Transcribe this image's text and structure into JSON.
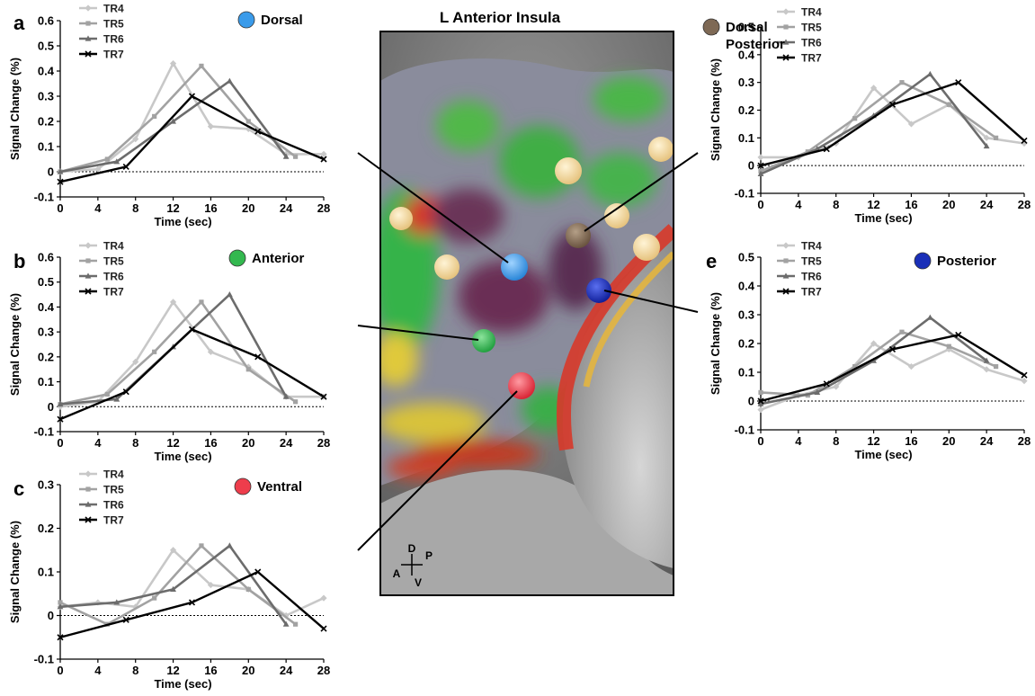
{
  "brain_panel": {
    "title": "L Anterior Insula",
    "orientation": {
      "dorsal": "D",
      "anterior": "A",
      "posterior": "P",
      "ventral": "V"
    }
  },
  "legend_labels": [
    "TR4",
    "TR5",
    "TR6",
    "TR7"
  ],
  "series_colors": [
    "#c8c8c8",
    "#a2a2a2",
    "#6c6c6c",
    "#000000"
  ],
  "region_colors": {
    "dorsal": "#3a9bea",
    "anterior": "#33b84f",
    "ventral": "#ee3d4c",
    "dorsal_posterior": "#7e6955",
    "posterior": "#1a2fb8"
  },
  "chart_data": [
    {
      "panel": "a",
      "region": "Dorsal",
      "type": "line",
      "xlabel": "Time (sec)",
      "ylabel": "Signal Change (%)",
      "xlim": [
        0,
        28
      ],
      "ylim": [
        -0.1,
        0.6
      ],
      "xticks": [
        0,
        4,
        8,
        12,
        16,
        20,
        24,
        28
      ],
      "yticks": [
        -0.1,
        0,
        0.1,
        0.2,
        0.3,
        0.4,
        0.5,
        0.6
      ],
      "ytick_labels": [
        "-0.1",
        "0",
        "0.1",
        "0.2",
        "0.3",
        "0.4",
        "0.5",
        "0.6"
      ],
      "series": [
        {
          "name": "TR4",
          "x": [
            0,
            4,
            8,
            12,
            16,
            20,
            24,
            28
          ],
          "values": [
            0.0,
            0.01,
            0.13,
            0.43,
            0.18,
            0.17,
            0.07,
            0.07
          ]
        },
        {
          "name": "TR5",
          "x": [
            0,
            5,
            10,
            15,
            20,
            25
          ],
          "values": [
            0.0,
            0.05,
            0.22,
            0.42,
            0.2,
            0.06
          ]
        },
        {
          "name": "TR6",
          "x": [
            0,
            6,
            12,
            18,
            24
          ],
          "values": [
            0.0,
            0.04,
            0.2,
            0.36,
            0.06
          ]
        },
        {
          "name": "TR7",
          "x": [
            0,
            7,
            14,
            21,
            28
          ],
          "values": [
            -0.04,
            0.02,
            0.3,
            0.16,
            0.05
          ]
        }
      ]
    },
    {
      "panel": "b",
      "region": "Anterior",
      "type": "line",
      "xlabel": "Time (sec)",
      "ylabel": "Signal Change (%)",
      "xlim": [
        0,
        28
      ],
      "ylim": [
        -0.1,
        0.6
      ],
      "xticks": [
        0,
        4,
        8,
        12,
        16,
        20,
        24,
        28
      ],
      "yticks": [
        -0.1,
        0,
        0.1,
        0.2,
        0.3,
        0.4,
        0.5,
        0.6
      ],
      "ytick_labels": [
        "-0.1",
        "0",
        "0.1",
        "0.2",
        "0.3",
        "0.4",
        "0.5",
        "0.6"
      ],
      "series": [
        {
          "name": "TR4",
          "x": [
            0,
            4,
            8,
            12,
            16,
            20,
            24,
            28
          ],
          "values": [
            0.0,
            0.02,
            0.18,
            0.42,
            0.22,
            0.16,
            0.04,
            0.04
          ]
        },
        {
          "name": "TR5",
          "x": [
            0,
            5,
            10,
            15,
            20,
            25
          ],
          "values": [
            0.01,
            0.05,
            0.22,
            0.42,
            0.15,
            0.02
          ]
        },
        {
          "name": "TR6",
          "x": [
            0,
            6,
            12,
            18,
            24
          ],
          "values": [
            0.01,
            0.03,
            0.24,
            0.45,
            0.04
          ]
        },
        {
          "name": "TR7",
          "x": [
            0,
            7,
            14,
            21,
            28
          ],
          "values": [
            -0.05,
            0.06,
            0.31,
            0.2,
            0.04
          ]
        }
      ]
    },
    {
      "panel": "c",
      "region": "Ventral",
      "type": "line",
      "xlabel": "Time (sec)",
      "ylabel": "Signal Change (%)",
      "xlim": [
        0,
        28
      ],
      "ylim": [
        -0.1,
        0.3
      ],
      "xticks": [
        0,
        4,
        8,
        12,
        16,
        20,
        24,
        28
      ],
      "yticks": [
        -0.1,
        0,
        0.1,
        0.2,
        0.3
      ],
      "ytick_labels": [
        "-0.1",
        "0",
        "0.1",
        "0.2",
        "0.3"
      ],
      "series": [
        {
          "name": "TR4",
          "x": [
            0,
            4,
            8,
            12,
            16,
            20,
            24,
            28
          ],
          "values": [
            0.02,
            0.03,
            0.02,
            0.15,
            0.07,
            0.06,
            0.0,
            0.04
          ]
        },
        {
          "name": "TR5",
          "x": [
            0,
            5,
            10,
            15,
            20,
            25
          ],
          "values": [
            0.03,
            -0.02,
            0.04,
            0.16,
            0.06,
            -0.02
          ]
        },
        {
          "name": "TR6",
          "x": [
            0,
            6,
            12,
            18,
            24
          ],
          "values": [
            0.02,
            0.03,
            0.06,
            0.16,
            -0.02
          ]
        },
        {
          "name": "TR7",
          "x": [
            0,
            7,
            14,
            21,
            28
          ],
          "values": [
            -0.05,
            -0.01,
            0.03,
            0.1,
            -0.03
          ]
        }
      ]
    },
    {
      "panel": "d",
      "region": "Dorsal Posterior",
      "type": "line",
      "xlabel": "Time (sec)",
      "ylabel": "Signal Change (%)",
      "xlim": [
        0,
        28
      ],
      "ylim": [
        -0.1,
        0.5
      ],
      "xticks": [
        0,
        4,
        8,
        12,
        16,
        20,
        24,
        28
      ],
      "yticks": [
        -0.1,
        0,
        0.1,
        0.2,
        0.3,
        0.4,
        0.5
      ],
      "ytick_labels": [
        "-0.1",
        "0",
        "0.1",
        "0.2",
        "0.3",
        "0.4",
        "0.5"
      ],
      "series": [
        {
          "name": "TR4",
          "x": [
            0,
            4,
            8,
            12,
            16,
            20,
            24,
            28
          ],
          "values": [
            0.03,
            0.03,
            0.08,
            0.28,
            0.15,
            0.22,
            0.1,
            0.08
          ]
        },
        {
          "name": "TR5",
          "x": [
            0,
            5,
            10,
            15,
            20,
            25
          ],
          "values": [
            -0.02,
            0.05,
            0.17,
            0.3,
            0.22,
            0.1
          ]
        },
        {
          "name": "TR6",
          "x": [
            0,
            6,
            12,
            18,
            24
          ],
          "values": [
            -0.03,
            0.06,
            0.18,
            0.33,
            0.07
          ]
        },
        {
          "name": "TR7",
          "x": [
            0,
            7,
            14,
            21,
            28
          ],
          "values": [
            0.0,
            0.06,
            0.22,
            0.3,
            0.09
          ]
        }
      ]
    },
    {
      "panel": "e",
      "region": "Posterior",
      "type": "line",
      "xlabel": "Time (sec)",
      "ylabel": "Signal Change (%)",
      "xlim": [
        0,
        28
      ],
      "ylim": [
        -0.1,
        0.5
      ],
      "xticks": [
        0,
        4,
        8,
        12,
        16,
        20,
        24,
        28
      ],
      "yticks": [
        -0.1,
        0,
        0.1,
        0.2,
        0.3,
        0.4,
        0.5
      ],
      "ytick_labels": [
        "-0.1",
        "0",
        "0.1",
        "0.2",
        "0.3",
        "0.4",
        "0.5"
      ],
      "series": [
        {
          "name": "TR4",
          "x": [
            0,
            4,
            8,
            12,
            16,
            20,
            24,
            28
          ],
          "values": [
            -0.03,
            0.02,
            0.05,
            0.2,
            0.12,
            0.18,
            0.11,
            0.07
          ]
        },
        {
          "name": "TR5",
          "x": [
            0,
            5,
            10,
            15,
            20,
            25
          ],
          "values": [
            0.03,
            0.02,
            0.12,
            0.24,
            0.19,
            0.12
          ]
        },
        {
          "name": "TR6",
          "x": [
            0,
            6,
            12,
            18,
            24
          ],
          "values": [
            -0.01,
            0.03,
            0.14,
            0.29,
            0.14
          ]
        },
        {
          "name": "TR7",
          "x": [
            0,
            7,
            14,
            21,
            28
          ],
          "values": [
            0.0,
            0.06,
            0.18,
            0.23,
            0.09
          ]
        }
      ]
    }
  ]
}
